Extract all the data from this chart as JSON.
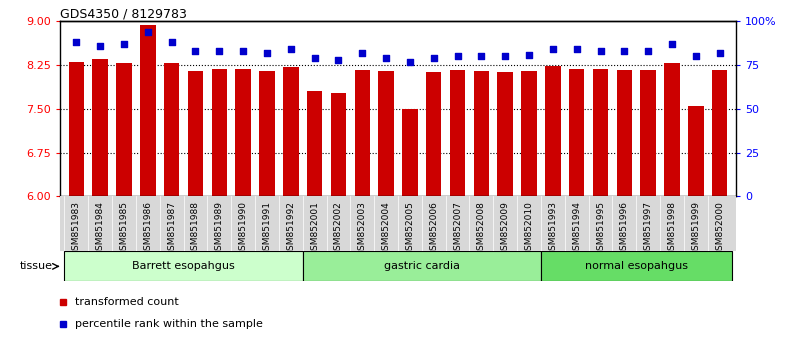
{
  "title": "GDS4350 / 8129783",
  "samples": [
    "GSM851983",
    "GSM851984",
    "GSM851985",
    "GSM851986",
    "GSM851987",
    "GSM851988",
    "GSM851989",
    "GSM851990",
    "GSM851991",
    "GSM851992",
    "GSM852001",
    "GSM852002",
    "GSM852003",
    "GSM852004",
    "GSM852005",
    "GSM852006",
    "GSM852007",
    "GSM852008",
    "GSM852009",
    "GSM852010",
    "GSM851993",
    "GSM851994",
    "GSM851995",
    "GSM851996",
    "GSM851997",
    "GSM851998",
    "GSM851999",
    "GSM852000"
  ],
  "bar_values": [
    8.3,
    8.35,
    8.28,
    8.93,
    8.28,
    8.15,
    8.18,
    8.18,
    8.15,
    8.22,
    7.8,
    7.78,
    8.17,
    8.14,
    7.5,
    8.13,
    8.17,
    8.15,
    8.13,
    8.14,
    8.24,
    8.18,
    8.19,
    8.16,
    8.17,
    8.28,
    7.55,
    8.16
  ],
  "dot_values": [
    88,
    86,
    87,
    94,
    88,
    83,
    83,
    83,
    82,
    84,
    79,
    78,
    82,
    79,
    77,
    79,
    80,
    80,
    80,
    81,
    84,
    84,
    83,
    83,
    83,
    87,
    80,
    82
  ],
  "groups": [
    {
      "label": "Barrett esopahgus",
      "start": 0,
      "end": 9,
      "color": "#ccffcc"
    },
    {
      "label": "gastric cardia",
      "start": 10,
      "end": 19,
      "color": "#99ee99"
    },
    {
      "label": "normal esopahgus",
      "start": 20,
      "end": 27,
      "color": "#66dd66"
    }
  ],
  "bar_color": "#cc0000",
  "dot_color": "#0000cc",
  "ylim_left": [
    6,
    9
  ],
  "ylim_right": [
    0,
    100
  ],
  "yticks_left": [
    6,
    6.75,
    7.5,
    8.25,
    9
  ],
  "yticks_right": [
    0,
    25,
    50,
    75,
    100
  ],
  "ytick_labels_right": [
    "0",
    "25",
    "50",
    "75",
    "100%"
  ],
  "hlines": [
    6.75,
    7.5,
    8.25
  ],
  "legend_items": [
    {
      "label": "transformed count",
      "color": "#cc0000"
    },
    {
      "label": "percentile rank within the sample",
      "color": "#0000cc"
    }
  ],
  "tissue_label": "tissue",
  "plot_bg": "#ffffff",
  "xtick_bg": "#d8d8d8"
}
